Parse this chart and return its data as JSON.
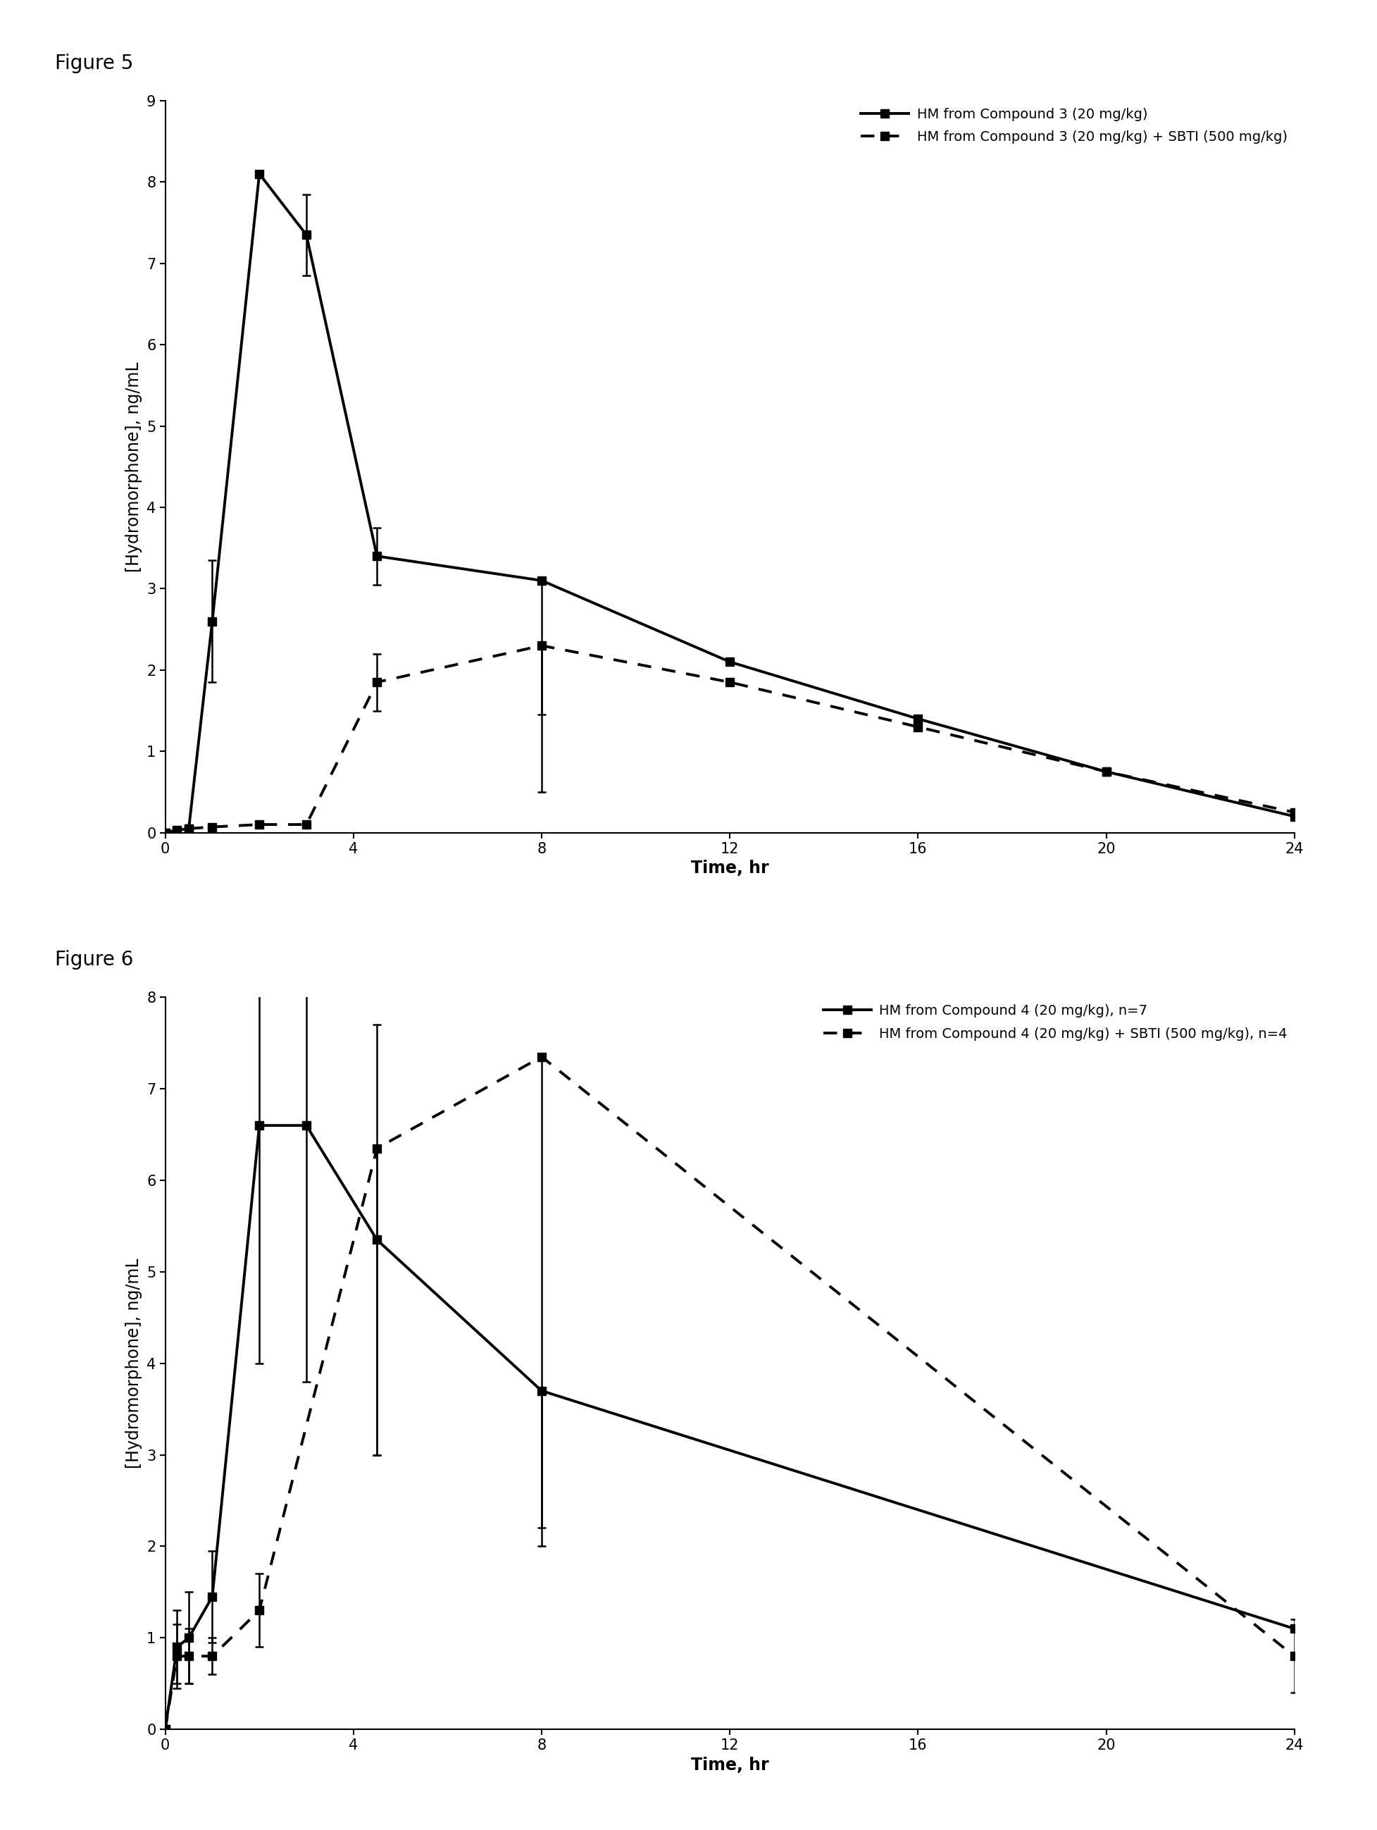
{
  "fig5": {
    "title": "Figure 5",
    "ylabel": "[Hydromorphone], ng/mL",
    "xlabel": "Time, hr",
    "ylim": [
      0,
      9
    ],
    "xlim": [
      0,
      24
    ],
    "yticks": [
      0,
      1,
      2,
      3,
      4,
      5,
      6,
      7,
      8,
      9
    ],
    "xticks": [
      0,
      4,
      8,
      12,
      16,
      20,
      24
    ],
    "solid_x": [
      0,
      0.25,
      0.5,
      1,
      2,
      3,
      4.5,
      8,
      12,
      16,
      20,
      24
    ],
    "solid_y": [
      0,
      0.03,
      0.05,
      2.6,
      8.1,
      7.35,
      3.4,
      3.1,
      2.1,
      1.4,
      0.75,
      0.2
    ],
    "solid_yerr_lo": [
      0,
      0,
      0.03,
      0.75,
      0.0,
      0.5,
      0.35,
      1.65,
      0,
      0,
      0,
      0
    ],
    "solid_yerr_hi": [
      0,
      0,
      0.03,
      0.75,
      0.0,
      0.5,
      0.35,
      0.0,
      0,
      0,
      0,
      0
    ],
    "dashed_x": [
      0,
      0.25,
      0.5,
      1,
      2,
      3,
      4.5,
      8,
      12,
      16,
      20,
      24
    ],
    "dashed_y": [
      0,
      0.02,
      0.05,
      0.07,
      0.1,
      0.1,
      1.85,
      2.3,
      1.85,
      1.3,
      0.75,
      0.25
    ],
    "dashed_yerr_lo": [
      0,
      0,
      0,
      0,
      0,
      0,
      0.35,
      1.8,
      0,
      0,
      0,
      0
    ],
    "dashed_yerr_hi": [
      0,
      0,
      0,
      0,
      0,
      0,
      0.35,
      0.0,
      0,
      0,
      0,
      0
    ],
    "legend1": "HM from Compound 3 (20 mg/kg)",
    "legend2": "HM from Compound 3 (20 mg/kg) + SBTI (500 mg/kg)"
  },
  "fig6": {
    "title": "Figure 6",
    "ylabel": "[Hydromorphone], ng/mL",
    "xlabel": "Time, hr",
    "ylim": [
      0,
      8
    ],
    "xlim": [
      0,
      24
    ],
    "yticks": [
      0,
      1,
      2,
      3,
      4,
      5,
      6,
      7,
      8
    ],
    "xticks": [
      0,
      4,
      8,
      12,
      16,
      20,
      24
    ],
    "solid_x": [
      0,
      0.25,
      0.5,
      1,
      2,
      3,
      4.5,
      8,
      24
    ],
    "solid_y": [
      0,
      0.9,
      1.0,
      1.45,
      6.6,
      6.6,
      5.35,
      3.7,
      1.1
    ],
    "solid_yerr_lo": [
      0,
      0.4,
      0.5,
      0.5,
      2.6,
      2.8,
      2.35,
      1.7,
      0
    ],
    "solid_yerr_hi": [
      0,
      0.4,
      0.5,
      0.5,
      2.6,
      2.8,
      2.35,
      0.0,
      0
    ],
    "dashed_x": [
      0,
      0.25,
      0.5,
      1,
      2,
      4.5,
      8,
      24
    ],
    "dashed_y": [
      0,
      0.8,
      0.8,
      0.8,
      1.3,
      6.35,
      7.35,
      0.8
    ],
    "dashed_yerr_lo": [
      0,
      0.35,
      0.3,
      0.2,
      0.4,
      3.35,
      5.15,
      0.4
    ],
    "dashed_yerr_hi": [
      0,
      0.35,
      0.3,
      0.2,
      0.4,
      0.0,
      0.0,
      0.4
    ],
    "legend1": "HM from Compound 4 (20 mg/kg), n=7",
    "legend2": "HM from Compound 4 (20 mg/kg) + SBTI (500 mg/kg), n=4"
  },
  "line_color": "#000000",
  "linewidth": 2.8,
  "markersize": 9,
  "capsize": 4,
  "elinewidth": 1.8,
  "capthick": 1.8,
  "title_fontsize": 20,
  "label_fontsize": 17,
  "tick_fontsize": 15,
  "legend_fontsize": 14
}
